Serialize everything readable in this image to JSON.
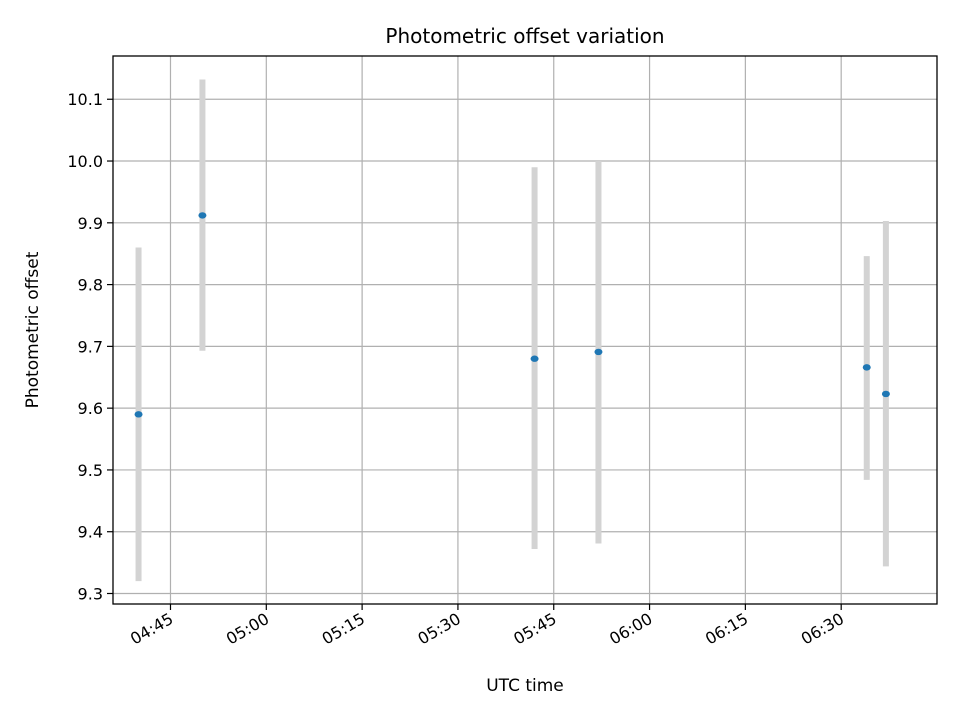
{
  "chart_data": {
    "type": "scatter",
    "title": "Photometric offset variation",
    "xlabel": "UTC time",
    "ylabel": "Photometric offset",
    "x_ticks": [
      "04:45",
      "05:00",
      "05:15",
      "05:30",
      "05:45",
      "06:00",
      "06:15",
      "06:30"
    ],
    "y_ticks": [
      "9.3",
      "9.4",
      "9.5",
      "9.6",
      "9.7",
      "9.8",
      "9.9",
      "10.0",
      "10.1"
    ],
    "xlim": [
      "04:36",
      "06:45"
    ],
    "ylim": [
      9.283,
      10.17
    ],
    "grid": true,
    "points": [
      {
        "x": "04:40",
        "y": 9.59,
        "ylow": 9.32,
        "yhigh": 9.86
      },
      {
        "x": "04:50",
        "y": 9.912,
        "ylow": 9.693,
        "yhigh": 10.132
      },
      {
        "x": "05:42",
        "y": 9.68,
        "ylow": 9.372,
        "yhigh": 9.99
      },
      {
        "x": "05:52",
        "y": 9.691,
        "ylow": 9.381,
        "yhigh": 10.0
      },
      {
        "x": "06:34",
        "y": 9.666,
        "ylow": 9.484,
        "yhigh": 9.846
      },
      {
        "x": "06:37",
        "y": 9.623,
        "ylow": 9.344,
        "yhigh": 9.903
      }
    ],
    "colors": {
      "point": "#1f77b4",
      "errorbar": "#d3d3d3",
      "grid": "#b0b0b0"
    }
  }
}
